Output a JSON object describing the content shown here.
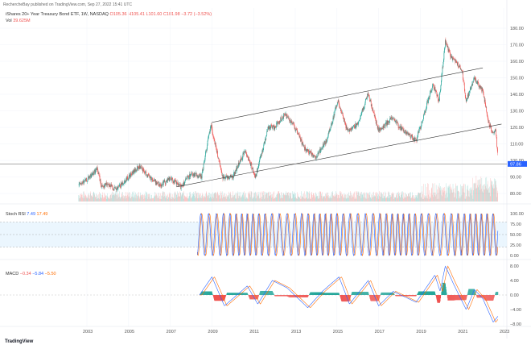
{
  "header": {
    "published": "RechercheBay published on TradingView.com, Sep 27, 2022 15:41 UTC",
    "symbol": "iShares 20+ Year Treasury Bond ETF, 1W, NASDAQ",
    "open": "O105.36",
    "high": "H105.41",
    "low": "L101.60",
    "close": "C101.98",
    "change": "−3.72 (−3.52%)",
    "vol_label": "Vol",
    "vol_value": "39.625M"
  },
  "stoch": {
    "label": "Stoch RSI",
    "k": "7.49",
    "d": "17.49"
  },
  "macd": {
    "label": "MACD",
    "hist": "−0.34",
    "macd": "−5.84",
    "signal": "−5.50"
  },
  "logo": "TradingView",
  "colors": {
    "up": "#26a69a",
    "down": "#ef5350",
    "k": "#2962ff",
    "d": "#ff6d00",
    "band": "#e3f2fd",
    "last_price": "#2962ff"
  },
  "chart_data": {
    "type": "candlestick",
    "x_ticks": [
      "2003",
      "2005",
      "2007",
      "2009",
      "2011",
      "2013",
      "2015",
      "2017",
      "2019",
      "2021",
      "2023"
    ],
    "price_axis": {
      "ticks": [
        "180.00",
        "170.00",
        "160.00",
        "150.00",
        "140.00",
        "130.00",
        "120.00",
        "110.00",
        "100.00",
        "90.00",
        "80.00"
      ],
      "range": [
        78,
        183
      ]
    },
    "last_price": "97.86",
    "price_path": [
      [
        2002.6,
        85
      ],
      [
        2003.0,
        88
      ],
      [
        2003.5,
        95
      ],
      [
        2003.7,
        84
      ],
      [
        2004.0,
        86
      ],
      [
        2004.4,
        82
      ],
      [
        2005.0,
        90
      ],
      [
        2005.5,
        96
      ],
      [
        2006.0,
        90
      ],
      [
        2006.5,
        85
      ],
      [
        2007.0,
        89
      ],
      [
        2007.5,
        84
      ],
      [
        2008.0,
        92
      ],
      [
        2008.5,
        90
      ],
      [
        2008.95,
        122
      ],
      [
        2009.5,
        90
      ],
      [
        2010.0,
        90
      ],
      [
        2010.6,
        106
      ],
      [
        2011.1,
        90
      ],
      [
        2011.7,
        120
      ],
      [
        2012.0,
        120
      ],
      [
        2012.5,
        128
      ],
      [
        2012.9,
        122
      ],
      [
        2013.5,
        106
      ],
      [
        2014.0,
        102
      ],
      [
        2014.5,
        112
      ],
      [
        2015.05,
        136
      ],
      [
        2015.5,
        118
      ],
      [
        2016.0,
        122
      ],
      [
        2016.5,
        140
      ],
      [
        2017.0,
        118
      ],
      [
        2017.7,
        126
      ],
      [
        2018.0,
        120
      ],
      [
        2018.8,
        112
      ],
      [
        2019.0,
        120
      ],
      [
        2019.6,
        146
      ],
      [
        2019.9,
        136
      ],
      [
        2020.2,
        172
      ],
      [
        2020.5,
        162
      ],
      [
        2021.0,
        155
      ],
      [
        2021.2,
        136
      ],
      [
        2021.6,
        150
      ],
      [
        2022.0,
        142
      ],
      [
        2022.3,
        122
      ],
      [
        2022.5,
        116
      ],
      [
        2022.6,
        120
      ],
      [
        2022.73,
        102
      ]
    ],
    "channel_upper": [
      [
        2009.0,
        123
      ],
      [
        2022.0,
        156
      ]
    ],
    "channel_lower": [
      [
        2007.3,
        84
      ],
      [
        2022.9,
        122
      ]
    ],
    "horizontal_level": 97.86,
    "stoch_axis": {
      "ticks": [
        "100.00",
        "75.00",
        "50.00",
        "25.00",
        "0.00"
      ],
      "band": [
        20,
        80
      ]
    },
    "stoch_k_cycles_per_year": 3.2,
    "macd_axis": {
      "ticks": [
        "8.00",
        "4.00",
        "0.00",
        "−4.00",
        "−8.00"
      ]
    },
    "macd_path": [
      [
        2008.4,
        0
      ],
      [
        2009.0,
        5
      ],
      [
        2009.6,
        -3
      ],
      [
        2010.7,
        2.5
      ],
      [
        2011.2,
        -2.5
      ],
      [
        2011.9,
        4
      ],
      [
        2012.6,
        2
      ],
      [
        2013.6,
        -3.5
      ],
      [
        2014.3,
        1
      ],
      [
        2015.1,
        5
      ],
      [
        2015.6,
        -2.5
      ],
      [
        2016.5,
        4
      ],
      [
        2017.0,
        -3
      ],
      [
        2017.7,
        1
      ],
      [
        2018.8,
        -2
      ],
      [
        2019.7,
        5.5
      ],
      [
        2019.95,
        1
      ],
      [
        2020.2,
        8
      ],
      [
        2020.6,
        3
      ],
      [
        2021.2,
        -4
      ],
      [
        2021.6,
        1.5
      ],
      [
        2022.0,
        -1
      ],
      [
        2022.5,
        -7.5
      ],
      [
        2022.73,
        -5.84
      ]
    ]
  }
}
